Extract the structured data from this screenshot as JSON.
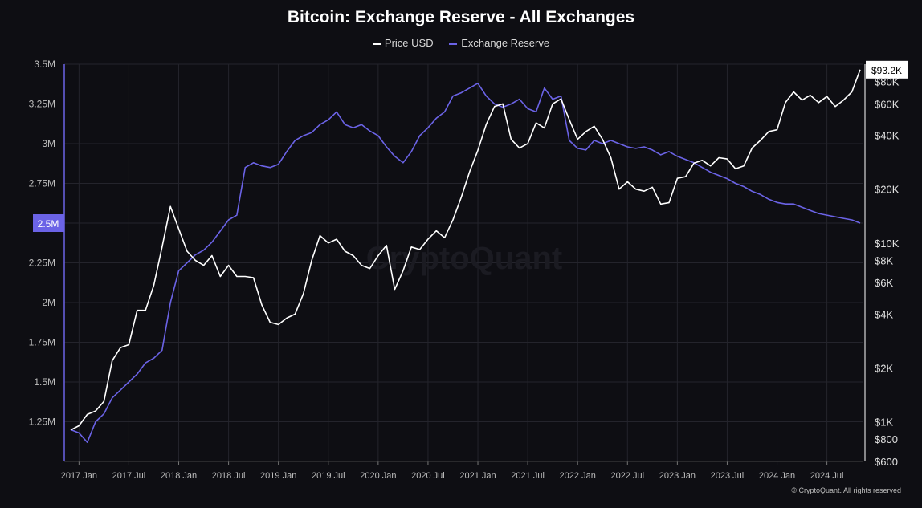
{
  "copyright": "© CryptoQuant. All rights reserved",
  "watermark": "CryptoQuant",
  "colors": {
    "background": "#0e0e13",
    "price": "#ffffff",
    "reserve": "#6b63e6",
    "grid": "#24242c",
    "axis_text": "#bdbdbd"
  },
  "chart_data": {
    "type": "line",
    "title": "Bitcoin: Exchange Reserve - All Exchanges",
    "x_tick_labels": [
      "2017 Jan",
      "2017 Jul",
      "2018 Jan",
      "2018 Jul",
      "2019 Jan",
      "2019 Jul",
      "2020 Jan",
      "2020 Jul",
      "2021 Jan",
      "2021 Jul",
      "2022 Jan",
      "2022 Jul",
      "2023 Jan",
      "2023 Jul",
      "2024 Jan",
      "2024 Jul"
    ],
    "x_range": [
      "2016-12",
      "2024-11"
    ],
    "left_axis": {
      "label": "",
      "ticks": [
        "3.5M",
        "3.25M",
        "3M",
        "2.75M",
        "2.5M",
        "2.25M",
        "2M",
        "1.75M",
        "1.5M",
        "1.25M"
      ],
      "range": [
        1.0,
        3.5
      ],
      "unit": "M",
      "current_value_label": "2.5M"
    },
    "right_axis": {
      "label": "",
      "scale": "log",
      "ticks": [
        "$80K",
        "$60K",
        "$40K",
        "$20K",
        "$10K",
        "$8K",
        "$6K",
        "$4K",
        "$2K",
        "$1K",
        "$800",
        "$600"
      ],
      "range": [
        600,
        100000
      ],
      "current_value_label": "$93.2K"
    },
    "legend_position": "top-center",
    "grid": true,
    "series": [
      {
        "name": "Price USD",
        "axis": "right",
        "color": "#ffffff",
        "points": [
          [
            "2016-12",
            900
          ],
          [
            "2017-01",
            950
          ],
          [
            "2017-02",
            1100
          ],
          [
            "2017-03",
            1150
          ],
          [
            "2017-04",
            1300
          ],
          [
            "2017-05",
            2200
          ],
          [
            "2017-06",
            2600
          ],
          [
            "2017-07",
            2700
          ],
          [
            "2017-08",
            4200
          ],
          [
            "2017-09",
            4200
          ],
          [
            "2017-10",
            5800
          ],
          [
            "2017-11",
            9500
          ],
          [
            "2017-12",
            16000
          ],
          [
            "2018-01",
            12000
          ],
          [
            "2018-02",
            9000
          ],
          [
            "2018-03",
            8000
          ],
          [
            "2018-04",
            7500
          ],
          [
            "2018-05",
            8500
          ],
          [
            "2018-06",
            6500
          ],
          [
            "2018-07",
            7500
          ],
          [
            "2018-08",
            6500
          ],
          [
            "2018-09",
            6500
          ],
          [
            "2018-10",
            6400
          ],
          [
            "2018-11",
            4500
          ],
          [
            "2018-12",
            3600
          ],
          [
            "2019-01",
            3500
          ],
          [
            "2019-02",
            3800
          ],
          [
            "2019-03",
            4000
          ],
          [
            "2019-04",
            5200
          ],
          [
            "2019-05",
            8000
          ],
          [
            "2019-06",
            11000
          ],
          [
            "2019-07",
            10000
          ],
          [
            "2019-08",
            10500
          ],
          [
            "2019-09",
            9000
          ],
          [
            "2019-10",
            8500
          ],
          [
            "2019-11",
            7500
          ],
          [
            "2019-12",
            7200
          ],
          [
            "2020-01",
            8500
          ],
          [
            "2020-02",
            9700
          ],
          [
            "2020-03",
            5500
          ],
          [
            "2020-04",
            7000
          ],
          [
            "2020-05",
            9500
          ],
          [
            "2020-06",
            9200
          ],
          [
            "2020-07",
            10500
          ],
          [
            "2020-08",
            11700
          ],
          [
            "2020-09",
            10700
          ],
          [
            "2020-10",
            13500
          ],
          [
            "2020-11",
            18000
          ],
          [
            "2020-12",
            25000
          ],
          [
            "2021-01",
            33000
          ],
          [
            "2021-02",
            46000
          ],
          [
            "2021-03",
            58000
          ],
          [
            "2021-04",
            60000
          ],
          [
            "2021-05",
            38000
          ],
          [
            "2021-06",
            34000
          ],
          [
            "2021-07",
            36000
          ],
          [
            "2021-08",
            47000
          ],
          [
            "2021-09",
            44000
          ],
          [
            "2021-10",
            60000
          ],
          [
            "2021-11",
            64000
          ],
          [
            "2021-12",
            49000
          ],
          [
            "2022-01",
            38000
          ],
          [
            "2022-02",
            42000
          ],
          [
            "2022-03",
            45000
          ],
          [
            "2022-04",
            38000
          ],
          [
            "2022-05",
            30000
          ],
          [
            "2022-06",
            20000
          ],
          [
            "2022-07",
            22000
          ],
          [
            "2022-08",
            20000
          ],
          [
            "2022-09",
            19500
          ],
          [
            "2022-10",
            20500
          ],
          [
            "2022-11",
            16500
          ],
          [
            "2022-12",
            16800
          ],
          [
            "2023-01",
            23000
          ],
          [
            "2023-02",
            23500
          ],
          [
            "2023-03",
            28000
          ],
          [
            "2023-04",
            29000
          ],
          [
            "2023-05",
            27000
          ],
          [
            "2023-06",
            30000
          ],
          [
            "2023-07",
            29500
          ],
          [
            "2023-08",
            26000
          ],
          [
            "2023-09",
            27000
          ],
          [
            "2023-10",
            34000
          ],
          [
            "2023-11",
            37500
          ],
          [
            "2023-12",
            42000
          ],
          [
            "2024-01",
            43000
          ],
          [
            "2024-02",
            61000
          ],
          [
            "2024-03",
            70000
          ],
          [
            "2024-04",
            63000
          ],
          [
            "2024-05",
            67000
          ],
          [
            "2024-06",
            61000
          ],
          [
            "2024-07",
            66000
          ],
          [
            "2024-08",
            58000
          ],
          [
            "2024-09",
            63000
          ],
          [
            "2024-10",
            70000
          ],
          [
            "2024-11",
            93200
          ]
        ]
      },
      {
        "name": "Exchange Reserve",
        "axis": "left",
        "color": "#6b63e6",
        "points": [
          [
            "2016-12",
            1.2
          ],
          [
            "2017-01",
            1.18
          ],
          [
            "2017-02",
            1.12
          ],
          [
            "2017-03",
            1.25
          ],
          [
            "2017-04",
            1.3
          ],
          [
            "2017-05",
            1.4
          ],
          [
            "2017-06",
            1.45
          ],
          [
            "2017-07",
            1.5
          ],
          [
            "2017-08",
            1.55
          ],
          [
            "2017-09",
            1.62
          ],
          [
            "2017-10",
            1.65
          ],
          [
            "2017-11",
            1.7
          ],
          [
            "2017-12",
            2.0
          ],
          [
            "2018-01",
            2.2
          ],
          [
            "2018-02",
            2.25
          ],
          [
            "2018-03",
            2.3
          ],
          [
            "2018-04",
            2.33
          ],
          [
            "2018-05",
            2.38
          ],
          [
            "2018-06",
            2.45
          ],
          [
            "2018-07",
            2.52
          ],
          [
            "2018-08",
            2.55
          ],
          [
            "2018-09",
            2.85
          ],
          [
            "2018-10",
            2.88
          ],
          [
            "2018-11",
            2.86
          ],
          [
            "2018-12",
            2.85
          ],
          [
            "2019-01",
            2.87
          ],
          [
            "2019-02",
            2.95
          ],
          [
            "2019-03",
            3.02
          ],
          [
            "2019-04",
            3.05
          ],
          [
            "2019-05",
            3.07
          ],
          [
            "2019-06",
            3.12
          ],
          [
            "2019-07",
            3.15
          ],
          [
            "2019-08",
            3.2
          ],
          [
            "2019-09",
            3.12
          ],
          [
            "2019-10",
            3.1
          ],
          [
            "2019-11",
            3.12
          ],
          [
            "2019-12",
            3.08
          ],
          [
            "2020-01",
            3.05
          ],
          [
            "2020-02",
            2.98
          ],
          [
            "2020-03",
            2.92
          ],
          [
            "2020-04",
            2.88
          ],
          [
            "2020-05",
            2.95
          ],
          [
            "2020-06",
            3.05
          ],
          [
            "2020-07",
            3.1
          ],
          [
            "2020-08",
            3.16
          ],
          [
            "2020-09",
            3.2
          ],
          [
            "2020-10",
            3.3
          ],
          [
            "2020-11",
            3.32
          ],
          [
            "2020-12",
            3.35
          ],
          [
            "2021-01",
            3.38
          ],
          [
            "2021-02",
            3.3
          ],
          [
            "2021-03",
            3.25
          ],
          [
            "2021-04",
            3.23
          ],
          [
            "2021-05",
            3.25
          ],
          [
            "2021-06",
            3.28
          ],
          [
            "2021-07",
            3.22
          ],
          [
            "2021-08",
            3.2
          ],
          [
            "2021-09",
            3.35
          ],
          [
            "2021-10",
            3.28
          ],
          [
            "2021-11",
            3.3
          ],
          [
            "2021-12",
            3.02
          ],
          [
            "2022-01",
            2.97
          ],
          [
            "2022-02",
            2.96
          ],
          [
            "2022-03",
            3.02
          ],
          [
            "2022-04",
            3.0
          ],
          [
            "2022-05",
            3.02
          ],
          [
            "2022-06",
            3.0
          ],
          [
            "2022-07",
            2.98
          ],
          [
            "2022-08",
            2.97
          ],
          [
            "2022-09",
            2.98
          ],
          [
            "2022-10",
            2.96
          ],
          [
            "2022-11",
            2.93
          ],
          [
            "2022-12",
            2.95
          ],
          [
            "2023-01",
            2.92
          ],
          [
            "2023-02",
            2.9
          ],
          [
            "2023-03",
            2.88
          ],
          [
            "2023-04",
            2.85
          ],
          [
            "2023-05",
            2.82
          ],
          [
            "2023-06",
            2.8
          ],
          [
            "2023-07",
            2.78
          ],
          [
            "2023-08",
            2.75
          ],
          [
            "2023-09",
            2.73
          ],
          [
            "2023-10",
            2.7
          ],
          [
            "2023-11",
            2.68
          ],
          [
            "2023-12",
            2.65
          ],
          [
            "2024-01",
            2.63
          ],
          [
            "2024-02",
            2.62
          ],
          [
            "2024-03",
            2.62
          ],
          [
            "2024-04",
            2.6
          ],
          [
            "2024-05",
            2.58
          ],
          [
            "2024-06",
            2.56
          ],
          [
            "2024-07",
            2.55
          ],
          [
            "2024-08",
            2.54
          ],
          [
            "2024-09",
            2.53
          ],
          [
            "2024-10",
            2.52
          ],
          [
            "2024-11",
            2.5
          ]
        ]
      }
    ]
  }
}
